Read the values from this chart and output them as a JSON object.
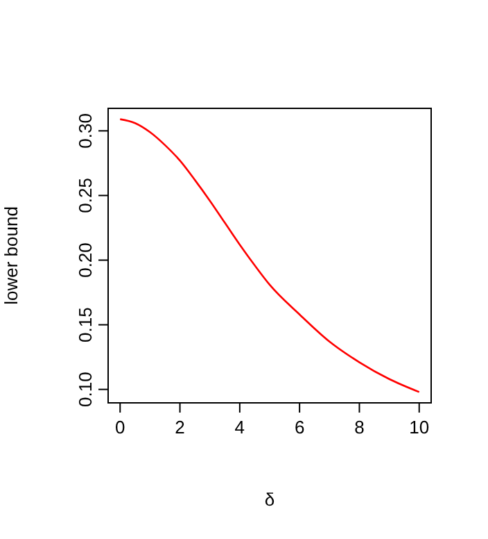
{
  "chart_data": {
    "type": "line",
    "xlabel": "δ",
    "ylabel": "lower bound",
    "x": [
      0,
      0.5,
      1,
      1.5,
      2,
      2.5,
      3,
      3.5,
      4,
      4.5,
      5,
      6,
      7,
      8,
      9,
      10
    ],
    "series": [
      {
        "color": "#ff0000",
        "values": [
          0.309,
          0.306,
          0.299,
          0.289,
          0.277,
          0.262,
          0.246,
          0.229,
          0.212,
          0.196,
          0.181,
          0.158,
          0.137,
          0.121,
          0.108,
          0.098
        ]
      }
    ],
    "xlim": [
      -0.4,
      10.4
    ],
    "ylim": [
      0.0896,
      0.3174
    ],
    "xticks": [
      0,
      2,
      4,
      6,
      8,
      10
    ],
    "yticks": [
      {
        "value": 0.1,
        "label": "0.10"
      },
      0.15,
      {
        "value": 0.2,
        "label": "0.20"
      },
      0.25,
      {
        "value": 0.3,
        "label": "0.30"
      }
    ]
  }
}
